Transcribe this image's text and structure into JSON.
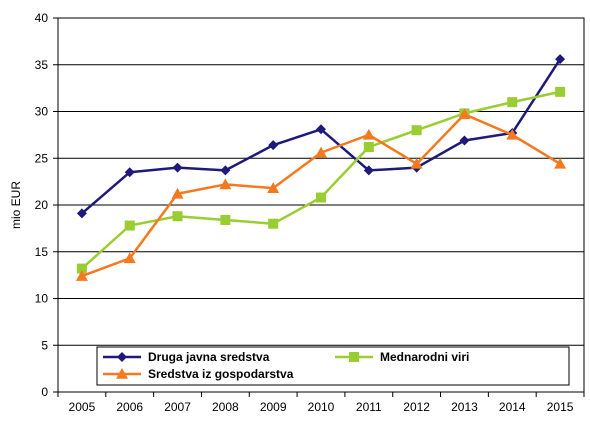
{
  "chart_data": {
    "type": "line",
    "title": "",
    "xlabel": "",
    "ylabel": "mio EUR",
    "ylim": [
      0,
      40
    ],
    "yticks": [
      0,
      5,
      10,
      15,
      20,
      25,
      30,
      35,
      40
    ],
    "grid": true,
    "legend_position": "bottom-left inside plot",
    "x": [
      "2005",
      "2006",
      "2007",
      "2008",
      "2009",
      "2010",
      "2011",
      "2012",
      "2013",
      "2014",
      "2015"
    ],
    "series": [
      {
        "name": "Druga javna sredstva",
        "color": "#1f1a7a",
        "marker": "diamond",
        "values": [
          19.1,
          23.5,
          24.0,
          23.7,
          26.4,
          28.1,
          23.7,
          24.0,
          26.9,
          27.7,
          35.6
        ]
      },
      {
        "name": "Mednarodni viri",
        "color": "#9acd32",
        "marker": "square",
        "values": [
          13.2,
          17.8,
          18.8,
          18.4,
          18.0,
          20.8,
          26.2,
          28.0,
          29.8,
          31.0,
          32.1
        ]
      },
      {
        "name": "Sredstva iz gospodarstva",
        "color": "#f47920",
        "marker": "triangle",
        "values": [
          12.4,
          14.3,
          21.2,
          22.2,
          21.8,
          25.6,
          27.5,
          24.4,
          29.7,
          27.5,
          24.4
        ]
      }
    ]
  }
}
